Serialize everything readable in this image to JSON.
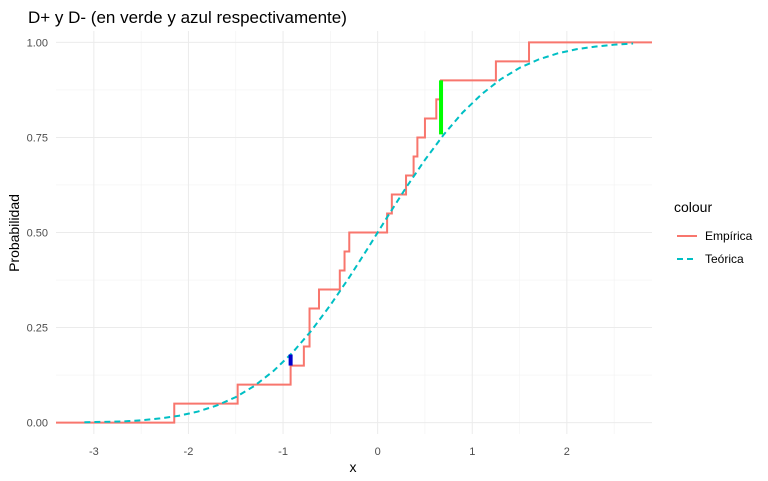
{
  "chart_data": {
    "type": "line",
    "title": "D+ y D- (en verde y azul respectivamente)",
    "xlabel": "x",
    "ylabel": "Probabilidad",
    "xlim": [
      -3.4,
      2.9
    ],
    "ylim": [
      -0.03,
      1.03
    ],
    "x_ticks": [
      -3,
      -2,
      -1,
      0,
      1,
      2
    ],
    "x_tick_labels": [
      "-3",
      "-2",
      "-1",
      "0",
      "1",
      "2"
    ],
    "y_ticks": [
      0,
      0.25,
      0.5,
      0.75,
      1
    ],
    "y_tick_labels": [
      "0.00",
      "0.25",
      "0.50",
      "0.75",
      "1.00"
    ],
    "grid": true,
    "legend_position": "right",
    "legend_title": "colour",
    "series": [
      {
        "name": "Empírica",
        "style": "step",
        "color": "#F8766D",
        "x": [
          -3.4,
          -2.15,
          -1.48,
          -0.92,
          -0.78,
          -0.72,
          -0.62,
          -0.4,
          -0.35,
          -0.3,
          0.1,
          0.15,
          0.3,
          0.38,
          0.42,
          0.5,
          0.62,
          0.67,
          1.25,
          1.6,
          2.9
        ],
        "y": [
          0.0,
          0.05,
          0.1,
          0.15,
          0.2,
          0.3,
          0.35,
          0.4,
          0.45,
          0.5,
          0.55,
          0.6,
          0.65,
          0.7,
          0.75,
          0.8,
          0.85,
          0.9,
          0.95,
          1.0,
          1.0
        ]
      },
      {
        "name": "Teórica",
        "style": "dashed",
        "color": "#00BFC4",
        "x": [
          -3.1,
          -2.9,
          -2.7,
          -2.5,
          -2.3,
          -2.1,
          -1.9,
          -1.7,
          -1.5,
          -1.3,
          -1.1,
          -0.9,
          -0.7,
          -0.5,
          -0.3,
          -0.1,
          0.1,
          0.3,
          0.5,
          0.7,
          0.9,
          1.1,
          1.3,
          1.5,
          1.7,
          1.9,
          2.1,
          2.3,
          2.5,
          2.7
        ],
        "y": [
          0.001,
          0.002,
          0.003,
          0.006,
          0.011,
          0.018,
          0.029,
          0.045,
          0.067,
          0.097,
          0.136,
          0.184,
          0.242,
          0.309,
          0.382,
          0.46,
          0.54,
          0.618,
          0.691,
          0.758,
          0.816,
          0.864,
          0.903,
          0.933,
          0.955,
          0.971,
          0.982,
          0.989,
          0.994,
          0.997
        ]
      }
    ],
    "annotations": [
      {
        "label": "D+",
        "color": "#00FF00",
        "x": 0.67,
        "y0": 0.758,
        "y1": 0.9
      },
      {
        "label": "D-",
        "color": "#0000CC",
        "x": -0.92,
        "y0": 0.15,
        "y1": 0.179
      }
    ]
  }
}
